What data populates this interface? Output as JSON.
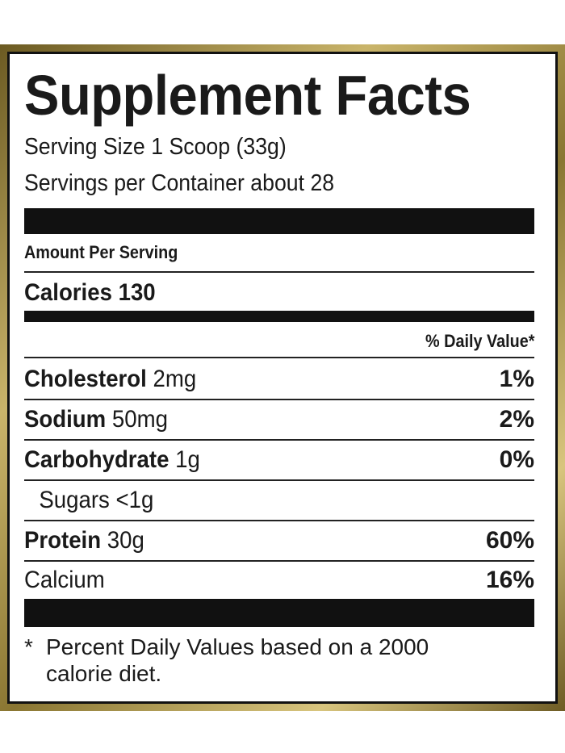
{
  "title": "Supplement Facts",
  "serving_size": "Serving Size 1 Scoop (33g)",
  "servings_per_container": "Servings per Container about 28",
  "amount_per_serving": "Amount Per Serving",
  "calories": {
    "label": "Calories",
    "amount": "130"
  },
  "daily_value_header": "% Daily Value*",
  "rows": [
    {
      "name": "Cholesterol",
      "amount": "2mg",
      "dv": "1%"
    },
    {
      "name": "Sodium",
      "amount": "50mg",
      "dv": "2%"
    },
    {
      "name": "Carbohydrate",
      "amount": "1g",
      "dv": "0%"
    },
    {
      "name": "Sugars",
      "amount": "<1g"
    },
    {
      "name": "Protein",
      "amount": "30g",
      "dv": "60%"
    },
    {
      "name": "Calcium",
      "dv": "16%"
    }
  ],
  "footnote": {
    "marker": "*",
    "lines": [
      "Percent Daily Values based on a 2000",
      "calorie diet."
    ]
  }
}
